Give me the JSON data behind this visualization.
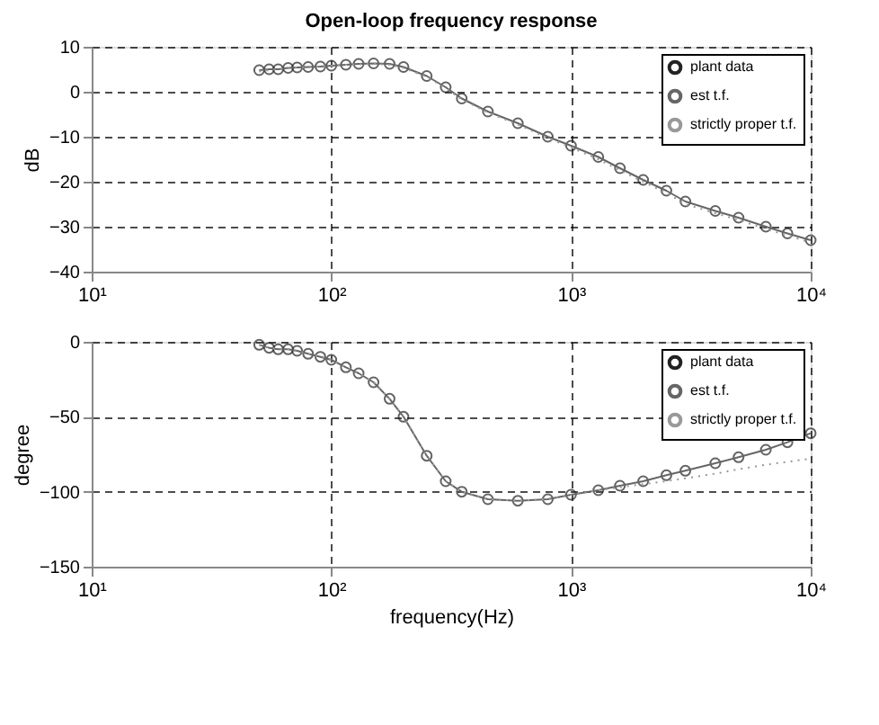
{
  "chart_data": [
    {
      "type": "line",
      "title": "Open-loop frequency response",
      "ylabel": "dB",
      "log": "x",
      "grid": true,
      "legend": "top right",
      "x": [
        50,
        55,
        60,
        66,
        72,
        80,
        90,
        100,
        115,
        130,
        150,
        175,
        200,
        250,
        300,
        350,
        450,
        600,
        800,
        1000,
        1300,
        1600,
        2000,
        2500,
        3000,
        4000,
        5000,
        6500,
        8000,
        10000
      ],
      "xlim": [
        10,
        10000
      ],
      "xticks": [
        {
          "value": 10,
          "label": "10¹"
        },
        {
          "value": 100,
          "label": "10²"
        },
        {
          "value": 1000,
          "label": "10³"
        },
        {
          "value": 10000,
          "label": "10⁴"
        }
      ],
      "ylim": [
        -40,
        10
      ],
      "yticks": [
        -40,
        -30,
        -20,
        -10,
        0,
        10
      ],
      "series": [
        {
          "name": "plant data",
          "type": "scatter",
          "marker": "circle",
          "color": "#222222",
          "values": [
            4.8,
            5,
            5,
            5.3,
            5.4,
            5.5,
            5.6,
            5.8,
            6,
            6.2,
            6.3,
            6.2,
            5.5,
            3.5,
            1,
            -1.5,
            -4.4,
            -7,
            -10,
            -12,
            -14.5,
            -17,
            -19.6,
            -22,
            -24.4,
            -26.5,
            -28,
            -30,
            -31.5,
            -33
          ]
        },
        {
          "name": "est t.f.",
          "line_style": "solid",
          "color": "#666666",
          "values": [
            4.8,
            5,
            5,
            5.3,
            5.4,
            5.5,
            5.6,
            5.8,
            6,
            6.2,
            6.3,
            6.2,
            5.5,
            3.5,
            1,
            -1.5,
            -4.4,
            -7,
            -10,
            -12,
            -14.5,
            -17,
            -19.6,
            -22,
            -24.4,
            -26.5,
            -28,
            -30,
            -31.5,
            -33
          ]
        },
        {
          "name": "strictly proper t.f.",
          "line_style": "dotted",
          "color": "#999999",
          "values": [
            4.5,
            4.8,
            5,
            5.2,
            5.4,
            5.5,
            5.6,
            5.8,
            6,
            6.1,
            6.2,
            6,
            5.3,
            3.3,
            0.8,
            -1.7,
            -4.6,
            -7.3,
            -10.3,
            -12.4,
            -15,
            -17.5,
            -20,
            -22.5,
            -25,
            -27,
            -28.5,
            -30.5,
            -32,
            -33.5
          ]
        }
      ]
    },
    {
      "type": "line",
      "xlabel": "frequency(Hz)",
      "ylabel": "degree",
      "log": "x",
      "grid": true,
      "legend": "top right",
      "x": [
        50,
        55,
        60,
        66,
        72,
        80,
        90,
        100,
        115,
        130,
        150,
        175,
        200,
        250,
        300,
        350,
        450,
        600,
        800,
        1000,
        1300,
        1600,
        2000,
        2500,
        3000,
        4000,
        5000,
        6500,
        8000,
        10000
      ],
      "xlim": [
        10,
        10000
      ],
      "xticks": [
        {
          "value": 10,
          "label": "10¹"
        },
        {
          "value": 100,
          "label": "10²"
        },
        {
          "value": 1000,
          "label": "10³"
        },
        {
          "value": 10000,
          "label": "10⁴"
        }
      ],
      "ylim": [
        -150,
        0
      ],
      "yticks": [
        -150,
        -100,
        -50,
        0
      ],
      "series": [
        {
          "name": "plant data",
          "type": "scatter",
          "marker": "circle",
          "color": "#222222",
          "values": [
            -2,
            -4,
            -5,
            -5,
            -6,
            -8,
            -10,
            -12,
            -17,
            -21,
            -27,
            -38,
            -50,
            -76,
            -93,
            -100,
            -105,
            -106,
            -105,
            -102,
            -99,
            -96,
            -93,
            -89,
            -86,
            -81,
            -77,
            -72,
            -67,
            -61
          ]
        },
        {
          "name": "est t.f.",
          "line_style": "solid",
          "color": "#666666",
          "values": [
            -2,
            -4,
            -5,
            -5,
            -6,
            -8,
            -10,
            -12,
            -17,
            -21,
            -27,
            -38,
            -50,
            -76,
            -93,
            -100,
            -105,
            -106,
            -105,
            -102,
            -99,
            -96,
            -93,
            -89,
            -86,
            -81,
            -77,
            -72,
            -67,
            -61
          ]
        },
        {
          "name": "strictly proper t.f.",
          "line_style": "dotted",
          "color": "#999999",
          "values": [
            -2,
            -4,
            -5,
            -5,
            -6,
            -8,
            -10,
            -12,
            -17,
            -21,
            -27,
            -38,
            -50,
            -76,
            -93,
            -100,
            -105,
            -106,
            -105,
            -102,
            -99,
            -97,
            -95,
            -93,
            -91,
            -88,
            -85,
            -82,
            -80,
            -78
          ]
        }
      ]
    }
  ]
}
